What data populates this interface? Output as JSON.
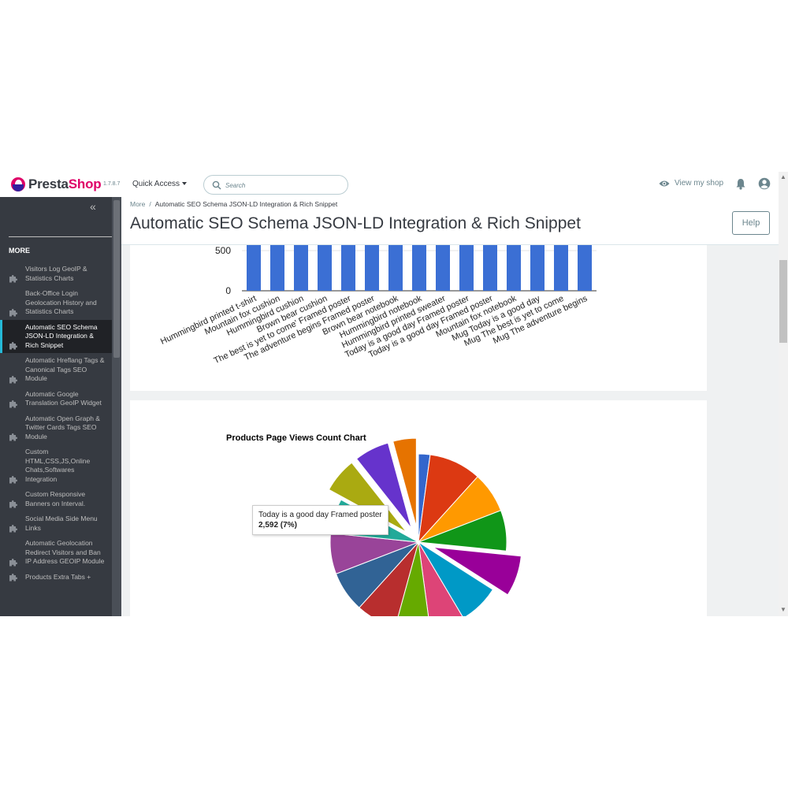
{
  "header": {
    "brand_presta": "Presta",
    "brand_shop": "Shop",
    "version": "1.7.8.7",
    "quick_access": "Quick Access",
    "search_placeholder": "Search",
    "view_shop": "View my shop",
    "icons": [
      "search-icon",
      "eye-icon",
      "bell-icon",
      "user-icon"
    ]
  },
  "sidebar": {
    "collapse": "«",
    "heading": "MORE",
    "items": [
      {
        "label": "Visitors Log GeoIP & Statistics Charts"
      },
      {
        "label": "Back-Office Login Geolocation History and Statistics Charts"
      },
      {
        "label": "Automatic SEO Schema JSON-LD Integration & Rich Snippet",
        "active": true
      },
      {
        "label": "Automatic Hreflang Tags & Canonical Tags SEO Module"
      },
      {
        "label": "Automatic Google Translation GeoIP Widget"
      },
      {
        "label": "Automatic Open Graph & Twitter Cards Tags SEO Module"
      },
      {
        "label": "Custom HTML,CSS,JS,Online Chats,Softwares Integration"
      },
      {
        "label": "Custom Responsive Banners on Interval."
      },
      {
        "label": "Social Media Side Menu Links"
      },
      {
        "label": "Automatic Geolocation Redirect Visitors and Ban IP Address GEOIP Module"
      },
      {
        "label": "Products Extra Tabs +"
      }
    ]
  },
  "page": {
    "breadcrumb_parent": "More",
    "breadcrumb_sep": "/",
    "breadcrumb_current": "Automatic SEO Schema JSON-LD Integration & Rich Snippet",
    "title": "Automatic SEO Schema JSON-LD Integration & Rich Snippet",
    "help": "Help"
  },
  "colors": {
    "accent": "#25b9d7",
    "brand": "#df0067",
    "bar": "#3b6fd4"
  },
  "chart_data": [
    {
      "type": "bar",
      "categories": [
        "Hummingbird printed t-shirt",
        "Mountain fox cushion",
        "Hummingbird cushion",
        "Brown bear cushion",
        "The best is yet to come' Framed poster",
        "The adventure begins Framed poster",
        "Brown bear notebook",
        "Hummingbird notebook",
        "Hummingbird printed sweater",
        "Today is a good day Framed poster",
        "Today is a good day Framed poster",
        "Mountain fox notebook",
        "Mug Today is a good day",
        "Mug The best is yet to come",
        "Mug The adventure begins"
      ],
      "yticks": [
        "0",
        "500"
      ],
      "ylim": [
        0,
        500
      ],
      "visible_top": 580
    },
    {
      "type": "pie",
      "title": "Products Page Views Count Chart",
      "tooltip": {
        "label": "Today is a good day Framed poster",
        "value": "2,592 (7%)"
      },
      "slices": [
        {
          "color": "#3366cc",
          "value": 2,
          "pull": false
        },
        {
          "color": "#dc3912",
          "value": 9,
          "pull": false
        },
        {
          "color": "#ff9900",
          "value": 7,
          "pull": false
        },
        {
          "color": "#109618",
          "value": 7,
          "pull": false
        },
        {
          "color": "#990099",
          "value": 7,
          "pull": true
        },
        {
          "color": "#0099c6",
          "value": 7,
          "pull": false
        },
        {
          "color": "#dd4477",
          "value": 6,
          "pull": false
        },
        {
          "color": "#66aa00",
          "value": 6,
          "pull": false
        },
        {
          "color": "#b82e2e",
          "value": 7,
          "pull": false
        },
        {
          "color": "#316395",
          "value": 7,
          "pull": false
        },
        {
          "color": "#994499",
          "value": 7,
          "pull": false
        },
        {
          "color": "#22aa99",
          "value": 6,
          "pull": false
        },
        {
          "color": "#aaaa11",
          "value": 6,
          "pull": true
        },
        {
          "color": "#6633cc",
          "value": 6,
          "pull": true
        },
        {
          "color": "#e67300",
          "value": 4,
          "pull": true
        }
      ]
    }
  ]
}
